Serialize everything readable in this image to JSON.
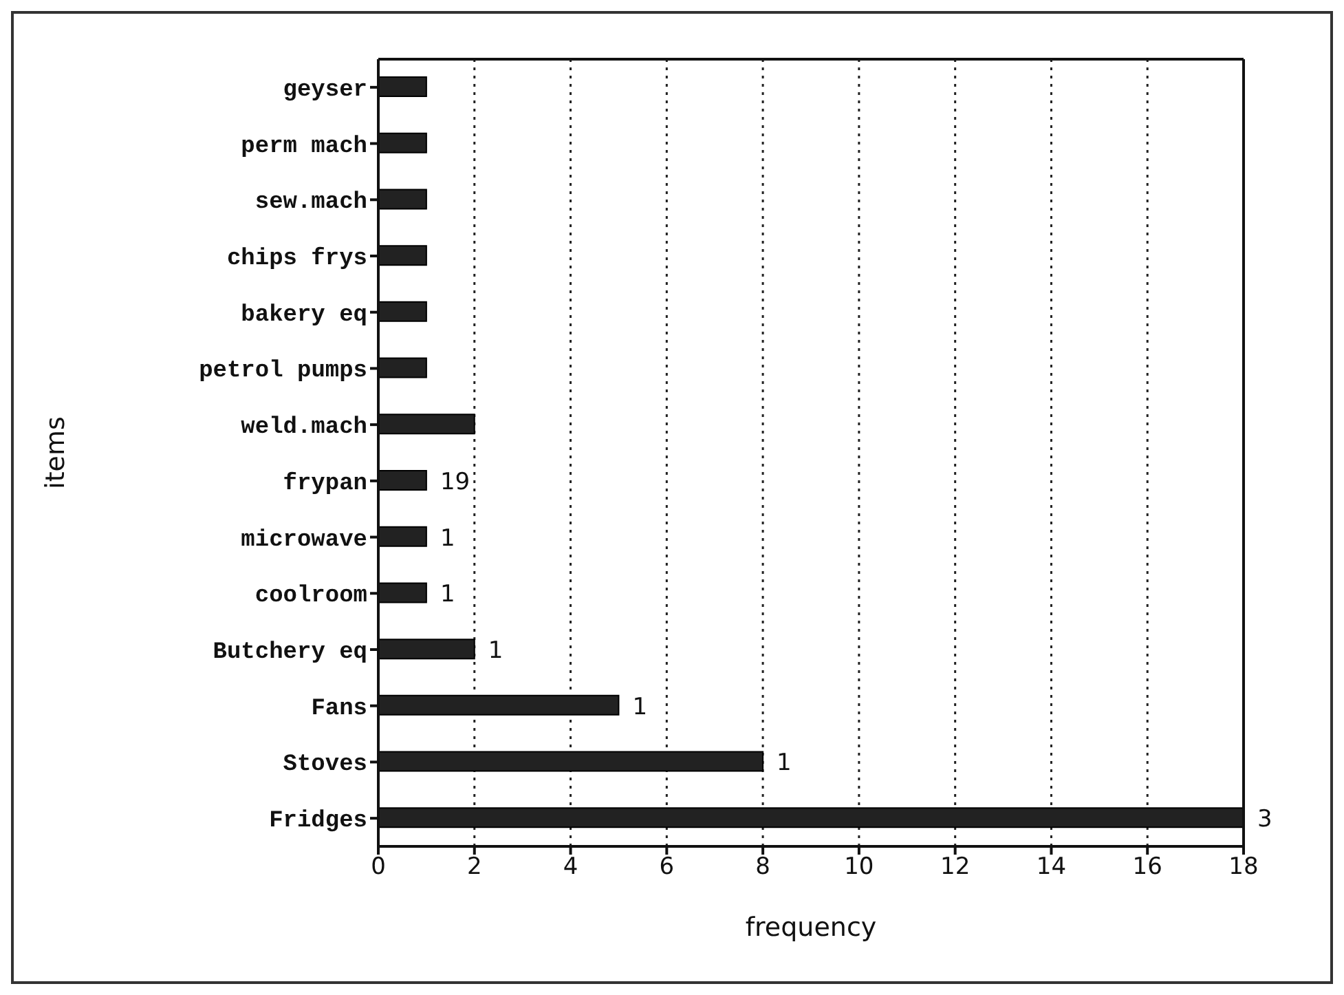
{
  "chart_data": {
    "type": "bar",
    "orientation": "horizontal",
    "xlabel": "frequency",
    "ylabel": "items",
    "categories": [
      "geyser",
      "perm mach",
      "sew.mach",
      "chips frys",
      "bakery eq",
      "petrol pumps",
      "weld.mach",
      "frypan",
      "microwave",
      "coolroom",
      "Butchery eq",
      "Fans",
      "Stoves",
      "Fridges"
    ],
    "values": [
      1,
      1,
      1,
      1,
      1,
      1,
      2,
      1,
      1,
      1,
      2,
      5,
      8,
      18
    ],
    "annotations": [
      {
        "text": "19",
        "x": 1,
        "y": "frypan"
      },
      {
        "text": "1",
        "x": 1,
        "y": "microwave"
      },
      {
        "text": "1",
        "x": 1,
        "y": "coolroom"
      },
      {
        "text": "1",
        "x": 2,
        "y": "Butchery eq"
      },
      {
        "text": "1",
        "x": 5,
        "y": "Fans"
      },
      {
        "text": "1",
        "x": 8,
        "y": "Stoves"
      },
      {
        "text": "3",
        "x": 18,
        "y": "Fridges"
      }
    ],
    "color": "#222222",
    "xlim": [
      0,
      18
    ],
    "xticks": [
      0,
      2,
      4,
      6,
      8,
      10,
      12,
      14,
      16,
      18
    ],
    "grid": "x",
    "legend": false
  }
}
